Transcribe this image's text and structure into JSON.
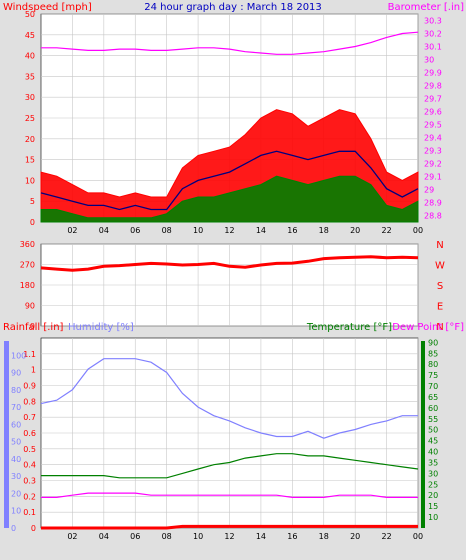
{
  "header": {
    "title": "24 hour graph day : March 18 2013",
    "left_label": "Windspeed [mph]",
    "right_label": "Barometer [.in]"
  },
  "colors": {
    "background": "#e0e0e0",
    "plot_bg": "#ffffff",
    "grid": "#c8c8c8",
    "wind_gust": "#ff0000",
    "wind_avg": "#008000",
    "wind_line": "#000080",
    "barometer": "#ff00ff",
    "direction": "#ff0000",
    "humidity": "#8080ff",
    "temperature": "#008000",
    "dew_point": "#ff00ff",
    "rainfall": "#ff0000",
    "title": "#0000c0",
    "compass": "#ff0000",
    "rain_axis": "#ff0000",
    "humidity_axis": "#8080ff",
    "temp_axis": "#008000",
    "baro_axis": "#ff00ff"
  },
  "hour_labels": [
    "02",
    "04",
    "06",
    "08",
    "10",
    "12",
    "14",
    "16",
    "18",
    "20",
    "22",
    "00"
  ],
  "chart_data": [
    {
      "type": "area",
      "title": "24 hour graph day : March 18 2013",
      "xlabel": "",
      "ylabel": "Windspeed [mph]",
      "y2label": "Barometer [.in]",
      "ylim": [
        0,
        50
      ],
      "y2lim": [
        28.75,
        30.35
      ],
      "y_ticks": [
        0,
        5,
        10,
        15,
        20,
        25,
        30,
        35,
        40,
        45,
        50
      ],
      "y2_ticks": [
        "28.8",
        "28.9",
        "29",
        "29.1",
        "29.2",
        "29.3",
        "29.4",
        "29.5",
        "29.6",
        "29.7",
        "29.8",
        "29.9",
        "30",
        "30.1",
        "30.2",
        "30.3"
      ],
      "x": [
        0,
        1,
        2,
        3,
        4,
        5,
        6,
        7,
        8,
        9,
        10,
        11,
        12,
        13,
        14,
        15,
        16,
        17,
        18,
        19,
        20,
        21,
        22,
        23,
        24
      ],
      "series": [
        {
          "values": [
            12,
            11,
            9,
            7,
            7,
            6,
            7,
            6,
            6,
            13,
            16,
            17,
            18,
            21,
            25,
            27,
            26,
            23,
            25,
            27,
            26,
            20,
            12,
            10,
            12
          ]
        },
        {
          "values": [
            7,
            6,
            5,
            4,
            4,
            3,
            4,
            3,
            3,
            8,
            10,
            11,
            12,
            14,
            16,
            17,
            16,
            15,
            16,
            17,
            17,
            13,
            8,
            6,
            8
          ]
        },
        {
          "values": [
            3,
            3,
            2,
            1,
            1,
            1,
            1,
            1,
            2,
            5,
            6,
            6,
            7,
            8,
            9,
            11,
            10,
            9,
            10,
            11,
            11,
            9,
            4,
            3,
            5
          ]
        },
        {
          "values": [
            30.09,
            30.09,
            30.08,
            30.07,
            30.07,
            30.08,
            30.08,
            30.07,
            30.07,
            30.08,
            30.09,
            30.09,
            30.08,
            30.06,
            30.05,
            30.04,
            30.04,
            30.05,
            30.06,
            30.08,
            30.1,
            30.13,
            30.17,
            30.2,
            30.21
          ]
        }
      ]
    },
    {
      "type": "line",
      "ylabel": "",
      "ylim": [
        0,
        360
      ],
      "y_ticks": [
        0,
        90,
        180,
        270,
        360
      ],
      "compass_labels": [
        "N",
        "W",
        "S",
        "E",
        "N"
      ],
      "x": [
        0,
        1,
        2,
        3,
        4,
        5,
        6,
        7,
        8,
        9,
        10,
        11,
        12,
        13,
        14,
        15,
        16,
        17,
        18,
        19,
        20,
        21,
        22,
        23,
        24
      ],
      "values": [
        255,
        250,
        245,
        250,
        262,
        265,
        270,
        275,
        272,
        268,
        270,
        275,
        262,
        258,
        268,
        275,
        276,
        284,
        296,
        300,
        302,
        304,
        300,
        302,
        300
      ]
    },
    {
      "type": "line",
      "ylim": [
        0,
        1.2
      ],
      "y_ticks": [
        "0",
        "0.1",
        "0.2",
        "0.3",
        "0.4",
        "0.5",
        "0.6",
        "0.7",
        "0.8",
        "0.9",
        "1",
        "1.1"
      ],
      "humidity_ticks": [
        0,
        10,
        20,
        30,
        40,
        50,
        60,
        70,
        80,
        90,
        100
      ],
      "temp_ticks": [
        10,
        15,
        20,
        25,
        30,
        35,
        40,
        45,
        50,
        55,
        60,
        65,
        70,
        75,
        80,
        85,
        90
      ],
      "rain_label": "Rainfall [.in]",
      "humidity_label": "Humidity [%]",
      "temp_label": "Temperature [°F]",
      "dew_label": "Dew Point [°F]",
      "x": [
        0,
        1,
        2,
        3,
        4,
        5,
        6,
        7,
        8,
        9,
        10,
        11,
        12,
        13,
        14,
        15,
        16,
        17,
        18,
        19,
        20,
        21,
        22,
        23,
        24
      ],
      "series": [
        {
          "values": [
            72,
            74,
            80,
            92,
            98,
            98,
            98,
            96,
            90,
            78,
            70,
            65,
            62,
            58,
            55,
            53,
            53,
            56,
            52,
            55,
            57,
            60,
            62,
            65,
            65
          ]
        },
        {
          "values": [
            29,
            29,
            29,
            29,
            29,
            28,
            28,
            28,
            28,
            30,
            32,
            34,
            35,
            37,
            38,
            39,
            39,
            38,
            38,
            37,
            36,
            35,
            34,
            33,
            32
          ]
        },
        {
          "values": [
            19,
            19,
            20,
            21,
            21,
            21,
            21,
            20,
            20,
            20,
            20,
            20,
            20,
            20,
            20,
            20,
            19,
            19,
            19,
            20,
            20,
            20,
            19,
            19,
            19
          ]
        },
        {
          "values": [
            0,
            0,
            0,
            0,
            0,
            0,
            0,
            0,
            0,
            0.01,
            0.01,
            0.01,
            0.01,
            0.01,
            0.01,
            0.01,
            0.01,
            0.01,
            0.01,
            0.01,
            0.01,
            0.01,
            0.01,
            0.01,
            0.01
          ]
        }
      ]
    }
  ]
}
